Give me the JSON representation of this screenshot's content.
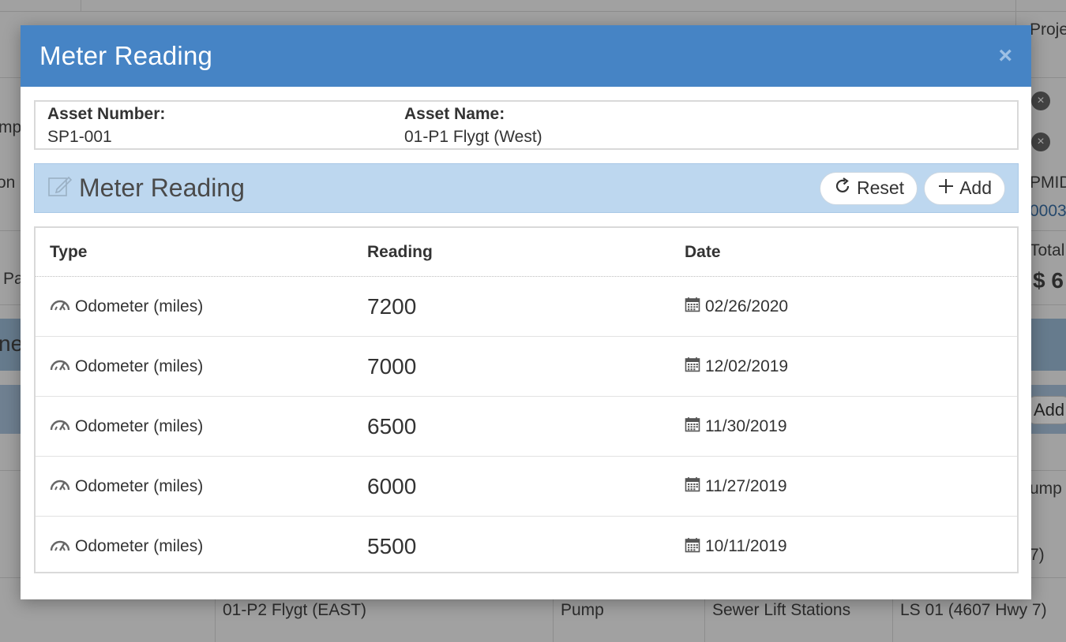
{
  "background": {
    "texts": [
      {
        "id": "bg-text-proj",
        "text": "Proje"
      },
      {
        "id": "bg-text-mp",
        "text": "mp"
      },
      {
        "id": "bg-text-on",
        "text": "on"
      },
      {
        "id": "bg-text-pa",
        "text": "Pa"
      },
      {
        "id": "bg-text-ne",
        "text": "ne"
      },
      {
        "id": "bg-text-pmid",
        "text": "PMID"
      },
      {
        "id": "bg-text-id",
        "text": "0003"
      },
      {
        "id": "bg-text-total",
        "text": "Total"
      },
      {
        "id": "bg-text-dollar",
        "text": "$ 6"
      },
      {
        "id": "bg-text-ump",
        "text": "ump"
      },
      {
        "id": "bg-text-7",
        "text": "7)"
      }
    ],
    "add_button": "Add",
    "row": {
      "name": "01-P2 Flygt (EAST)",
      "category": "Pump",
      "system": "Sewer Lift Stations",
      "location": "LS 01 (4607 Hwy 7)"
    }
  },
  "modal": {
    "title": "Meter Reading",
    "close": "×",
    "asset": {
      "number_label": "Asset Number:",
      "number_value": "SP1-001",
      "name_label": "Asset Name:",
      "name_value": "01-P1 Flygt (West)"
    },
    "section": {
      "title": "Meter Reading",
      "icon": "edit-icon",
      "reset_label": "Reset",
      "add_label": "Add"
    },
    "table": {
      "headers": [
        "Type",
        "Reading",
        "Date"
      ],
      "rows": [
        {
          "type": "Odometer (miles)",
          "reading": "7200",
          "date": "02/26/2020"
        },
        {
          "type": "Odometer (miles)",
          "reading": "7000",
          "date": "12/02/2019"
        },
        {
          "type": "Odometer (miles)",
          "reading": "6500",
          "date": "11/30/2019"
        },
        {
          "type": "Odometer (miles)",
          "reading": "6000",
          "date": "11/27/2019"
        },
        {
          "type": "Odometer (miles)",
          "reading": "5500",
          "date": "10/11/2019"
        }
      ]
    }
  },
  "colors": {
    "header_blue": "#4684c5",
    "section_blue": "#bdd7ef"
  }
}
